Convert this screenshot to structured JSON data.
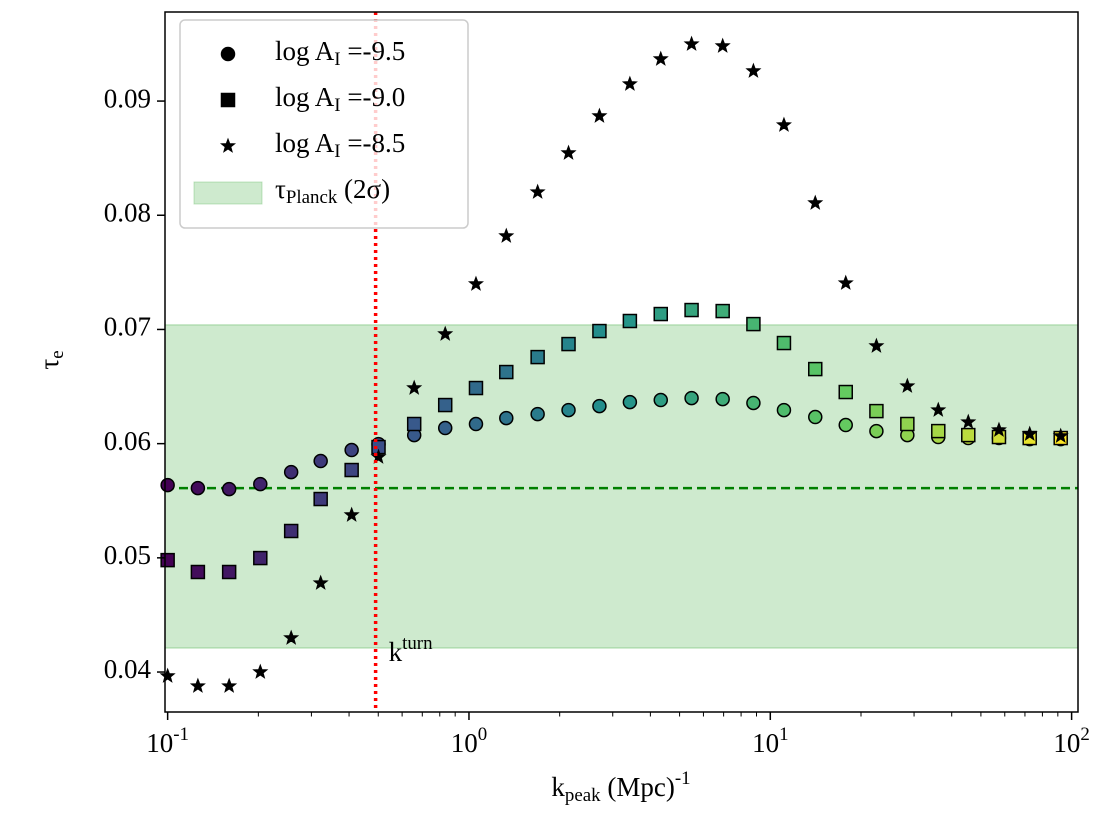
{
  "chart_data": {
    "type": "scatter",
    "xlabel": "k_{peak} (Mpc)^{-1}",
    "ylabel": "τ_{e}",
    "xscale": "log",
    "xlim": [
      0.098,
      105
    ],
    "ylim": [
      0.0365,
      0.0978
    ],
    "xticks": [
      {
        "value": 0.1,
        "label": "10^{-1}"
      },
      {
        "value": 1,
        "label": "10^{0}"
      },
      {
        "value": 10,
        "label": "10^{1}"
      },
      {
        "value": 100,
        "label": "10^{2}"
      }
    ],
    "yticks": [
      0.04,
      0.05,
      0.06,
      0.07,
      0.08,
      0.09
    ],
    "colormap": "viridis",
    "edgecolor": "#000000",
    "x": [
      0.1,
      0.126,
      0.16,
      0.203,
      0.257,
      0.322,
      0.408,
      0.501,
      0.658,
      0.834,
      1.055,
      1.33,
      1.69,
      2.14,
      2.71,
      3.42,
      4.33,
      5.48,
      6.95,
      8.79,
      11.1,
      14.1,
      17.8,
      22.5,
      28.5,
      36.1,
      45.4,
      57.4,
      72.6,
      92.0
    ],
    "series": [
      {
        "name": "log A_{I} =-9.5",
        "marker": "circle",
        "color": "#000000",
        "values": [
          0.05637,
          0.05611,
          0.05602,
          0.05646,
          0.05751,
          0.05848,
          0.05944,
          0.05996,
          0.06075,
          0.06137,
          0.06172,
          0.06224,
          0.06259,
          0.06294,
          0.06329,
          0.06364,
          0.06382,
          0.06399,
          0.0639,
          0.06356,
          0.06294,
          0.06233,
          0.06163,
          0.0611,
          0.06075,
          0.06058,
          0.06049,
          0.06049,
          0.0604,
          0.0604
        ]
      },
      {
        "name": "log A_{I} =-9.0",
        "marker": "square",
        "color": "#000000",
        "values": [
          0.0498,
          0.04876,
          0.04876,
          0.04998,
          0.05235,
          0.05515,
          0.05769,
          0.0597,
          0.06172,
          0.06338,
          0.06487,
          0.06627,
          0.06758,
          0.06872,
          0.06986,
          0.07074,
          0.07135,
          0.0717,
          0.07161,
          0.07047,
          0.06881,
          0.06653,
          0.06452,
          0.06285,
          0.06172,
          0.0611,
          0.06075,
          0.06058,
          0.06049,
          0.06049
        ]
      },
      {
        "name": "log A_{I} =-8.5",
        "marker": "star",
        "color": "#000000",
        "values": [
          0.03965,
          0.03877,
          0.03877,
          0.04,
          0.04298,
          0.04779,
          0.05375,
          0.05883,
          0.06487,
          0.0696,
          0.07398,
          0.07818,
          0.08203,
          0.08545,
          0.08869,
          0.09149,
          0.09368,
          0.09499,
          0.09482,
          0.09263,
          0.0879,
          0.08107,
          0.07406,
          0.06855,
          0.06504,
          0.06294,
          0.06189,
          0.06119,
          0.06084,
          0.06067
        ]
      }
    ],
    "band": {
      "name": "τ_{Planck} (2σ)",
      "range": [
        0.0421,
        0.0704
      ],
      "color": "#5cb85c"
    },
    "hline": {
      "value": 0.0561,
      "color": "#008000"
    },
    "vline": {
      "value": 0.49,
      "color": "#ff0000",
      "label": "k^{turn}",
      "label_x": 0.64,
      "label_y": 0.0415
    },
    "legend": "upper left"
  }
}
